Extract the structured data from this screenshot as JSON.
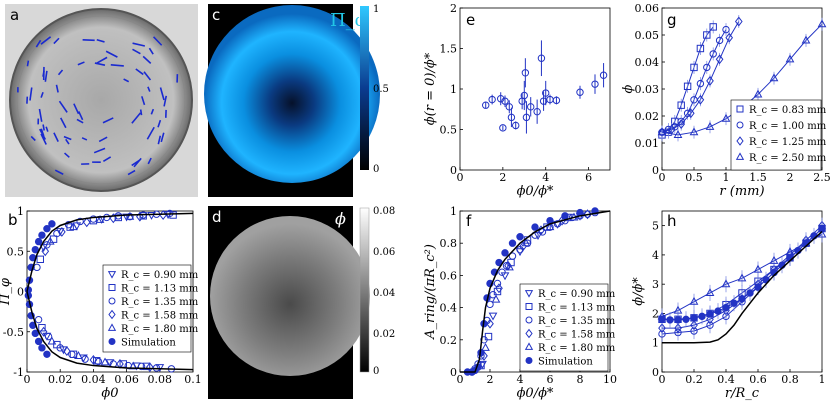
{
  "figure": {
    "panel_letters": [
      "a",
      "b",
      "c",
      "d",
      "e",
      "f",
      "g",
      "h"
    ],
    "colors": {
      "series": "#2233c4",
      "fit": "#000000",
      "colorbar_pi": "#00b4ff",
      "title_pi": "#22c7e6"
    }
  },
  "panel_c": {
    "title": "Π_φ",
    "colorbar": {
      "labels": [
        "1",
        "0.5",
        "0"
      ],
      "cmap": "black-blue-cyan"
    }
  },
  "panel_d": {
    "title": "ϕ",
    "colorbar": {
      "labels": [
        "0.08",
        "0.06",
        "0.04",
        "0.02",
        "0"
      ],
      "cmap": "black-gray-white"
    }
  },
  "chart_data": [
    {
      "id": "b",
      "type": "scatter",
      "xlabel": "ϕ0",
      "ylabel": "Π_φ",
      "xlim": [
        0,
        0.1
      ],
      "ylim": [
        -1,
        1
      ],
      "xticks": [
        "0",
        "0.02",
        "0.04",
        "0.06",
        "0.08",
        "0.1"
      ],
      "yticks": [
        "-1",
        "-0.5",
        "0",
        "0.5",
        "1"
      ],
      "legend": [
        "R_c = 0.90 mm",
        "R_c = 1.13 mm",
        "R_c = 1.35 mm",
        "R_c = 1.58 mm",
        "R_c = 1.80 mm",
        "Simulation"
      ],
      "legend_position": "right",
      "series": [
        {
          "name": "Rc=0.90mm",
          "marker": "triangle-down",
          "x": [
            0.01,
            0.02,
            0.03,
            0.045,
            0.06,
            0.075,
            0.085,
            0.012,
            0.022,
            0.034,
            0.05,
            0.066,
            0.08
          ],
          "y": [
            0.55,
            0.75,
            0.82,
            0.9,
            0.93,
            0.95,
            0.96,
            -0.55,
            -0.72,
            -0.82,
            -0.88,
            -0.92,
            -0.94
          ]
        },
        {
          "name": "Rc=1.13mm",
          "marker": "square",
          "x": [
            0.008,
            0.016,
            0.026,
            0.04,
            0.055,
            0.07,
            0.088,
            0.009,
            0.018,
            0.028,
            0.042,
            0.058,
            0.072
          ],
          "y": [
            0.4,
            0.65,
            0.8,
            0.88,
            0.92,
            0.94,
            0.95,
            -0.45,
            -0.66,
            -0.78,
            -0.86,
            -0.9,
            -0.93
          ]
        },
        {
          "name": "Rc=1.35mm",
          "marker": "circle",
          "x": [
            0.006,
            0.012,
            0.018,
            0.025,
            0.032,
            0.04,
            0.048,
            0.055,
            0.062,
            0.07,
            0.078,
            0.086,
            0.007,
            0.013,
            0.02,
            0.027,
            0.035,
            0.043,
            0.052,
            0.061,
            0.069,
            0.078,
            0.087
          ],
          "y": [
            0.3,
            0.58,
            0.72,
            0.83,
            0.87,
            0.9,
            0.92,
            0.94,
            0.93,
            0.95,
            0.96,
            0.97,
            -0.35,
            -0.56,
            -0.7,
            -0.78,
            -0.84,
            -0.87,
            -0.9,
            -0.92,
            -0.93,
            -0.95,
            -0.96
          ]
        },
        {
          "name": "Rc=1.58mm",
          "marker": "diamond",
          "x": [
            0.011,
            0.021,
            0.036,
            0.052,
            0.068,
            0.082,
            0.01,
            0.024,
            0.04,
            0.056,
            0.074
          ],
          "y": [
            0.5,
            0.74,
            0.86,
            0.91,
            0.93,
            0.95,
            -0.5,
            -0.74,
            -0.85,
            -0.9,
            -0.94
          ]
        },
        {
          "name": "Rc=1.80mm",
          "marker": "triangle-up",
          "x": [
            0.014,
            0.028,
            0.044,
            0.062,
            0.015,
            0.031,
            0.047,
            0.064
          ],
          "y": [
            0.62,
            0.8,
            0.89,
            0.93,
            -0.62,
            -0.8,
            -0.88,
            -0.93
          ]
        },
        {
          "name": "Simulation",
          "marker": "filled-circle",
          "x": [
            0.0008,
            0.0015,
            0.0025,
            0.0035,
            0.005,
            0.007,
            0.009,
            0.012,
            0.015,
            0.0008,
            0.0015,
            0.0025,
            0.0035,
            0.005,
            0.007,
            0.009,
            0.012
          ],
          "y": [
            0.02,
            0.14,
            0.3,
            0.42,
            0.52,
            0.62,
            0.7,
            0.78,
            0.84,
            -0.05,
            -0.16,
            -0.3,
            -0.42,
            -0.52,
            -0.62,
            -0.7,
            -0.78
          ]
        }
      ],
      "fit": {
        "name": "fit",
        "x": [
          0,
          0.003,
          0.006,
          0.01,
          0.015,
          0.02,
          0.03,
          0.04,
          0.06,
          0.08,
          0.1
        ],
        "y": [
          0.0,
          0.26,
          0.46,
          0.62,
          0.75,
          0.82,
          0.89,
          0.92,
          0.95,
          0.96,
          0.97
        ]
      }
    },
    {
      "id": "e",
      "type": "scatter",
      "xlabel": "ϕ0/ϕ*",
      "ylabel": "ϕ(r = 0)/ϕ*",
      "xlim": [
        0,
        7
      ],
      "ylim": [
        0,
        2
      ],
      "xticks": [
        "0",
        "2",
        "4",
        "6"
      ],
      "yticks": [
        "0",
        "0.5",
        "1",
        "1.5",
        "2"
      ],
      "series": [
        {
          "name": "data",
          "marker": "circle",
          "x": [
            1.2,
            1.5,
            1.9,
            2.0,
            2.1,
            2.3,
            2.4,
            2.6,
            2.9,
            3.0,
            3.05,
            3.1,
            3.3,
            3.6,
            3.8,
            3.9,
            4.0,
            4.2,
            4.5,
            5.6,
            6.3,
            6.7
          ],
          "y": [
            0.8,
            0.87,
            0.88,
            0.52,
            0.85,
            0.78,
            0.65,
            0.55,
            0.85,
            0.92,
            1.2,
            0.65,
            0.78,
            0.72,
            1.38,
            0.85,
            0.95,
            0.87,
            0.86,
            0.96,
            1.06,
            1.17
          ],
          "err": [
            0.04,
            0.06,
            0.08,
            0.03,
            0.07,
            0.08,
            0.12,
            0.05,
            0.1,
            0.18,
            0.18,
            0.2,
            0.12,
            0.15,
            0.22,
            0.12,
            0.15,
            0.06,
            0.05,
            0.08,
            0.12,
            0.15
          ]
        }
      ]
    },
    {
      "id": "f",
      "type": "scatter",
      "xlabel": "ϕ0/ϕ*",
      "ylabel": "A_ring/(πR_c²)",
      "xlim": [
        0,
        10
      ],
      "ylim": [
        0,
        1
      ],
      "xticks": [
        "0",
        "2",
        "4",
        "6",
        "8",
        "10"
      ],
      "yticks": [
        "0",
        "0.2",
        "0.4",
        "0.6",
        "0.8",
        "1"
      ],
      "legend": [
        "R_c = 0.90 mm",
        "R_c = 1.13 mm",
        "R_c = 1.35 mm",
        "R_c = 1.58 mm",
        "R_c = 1.80 mm",
        "Simulation"
      ],
      "legend_position": "bottom-right",
      "series": [
        {
          "name": "Rc=0.90mm",
          "marker": "triangle-down",
          "x": [
            1.5,
            2.2,
            3.0,
            4.0,
            5.2,
            6.5,
            8.0
          ],
          "y": [
            0.05,
            0.35,
            0.6,
            0.75,
            0.85,
            0.92,
            0.97
          ]
        },
        {
          "name": "Rc=1.13mm",
          "marker": "square",
          "x": [
            1.4,
            1.9,
            2.5,
            3.4,
            4.5,
            5.8,
            7.2
          ],
          "y": [
            0.04,
            0.22,
            0.5,
            0.68,
            0.82,
            0.9,
            0.96
          ]
        },
        {
          "name": "Rc=1.35mm",
          "marker": "circle",
          "x": [
            0.8,
            1.0,
            1.2,
            1.4,
            1.6,
            1.8,
            2.0,
            2.2,
            2.5,
            2.8,
            3.1,
            3.5,
            4.0,
            4.5,
            5.0,
            5.5,
            6.0,
            6.5,
            7.0,
            7.5,
            8.0,
            8.5,
            9.0
          ],
          "y": [
            0.0,
            0.02,
            0.05,
            0.1,
            0.2,
            0.32,
            0.42,
            0.48,
            0.55,
            0.62,
            0.66,
            0.72,
            0.76,
            0.8,
            0.85,
            0.87,
            0.9,
            0.92,
            0.94,
            0.96,
            0.97,
            0.98,
            0.99
          ]
        },
        {
          "name": "Rc=1.58mm",
          "marker": "diamond",
          "x": [
            1.6,
            2.0,
            2.6,
            3.2,
            4.2,
            5.4,
            6.8,
            8.5
          ],
          "y": [
            0.1,
            0.3,
            0.52,
            0.66,
            0.78,
            0.88,
            0.94,
            0.98
          ]
        },
        {
          "name": "Rc=1.80mm",
          "marker": "triangle-up",
          "x": [
            1.7,
            2.4,
            3.3,
            4.4,
            6.0,
            7.6
          ],
          "y": [
            0.15,
            0.45,
            0.65,
            0.8,
            0.9,
            0.96
          ]
        },
        {
          "name": "Simulation",
          "marker": "filled-circle",
          "x": [
            0.5,
            0.8,
            1.0,
            1.2,
            1.4,
            1.6,
            1.8,
            2.0,
            2.3,
            2.6,
            3.0,
            3.5,
            4.0,
            5.0,
            6.0,
            7.0,
            8.0,
            9.0
          ],
          "y": [
            0.0,
            0.0,
            0.01,
            0.03,
            0.12,
            0.3,
            0.46,
            0.55,
            0.62,
            0.68,
            0.74,
            0.8,
            0.84,
            0.9,
            0.94,
            0.97,
            0.99,
            1.0
          ]
        }
      ],
      "fit": {
        "name": "fit",
        "x": [
          0,
          1.0,
          1.3,
          1.5,
          1.7,
          2.0,
          2.5,
          3.0,
          4.0,
          5.0,
          6.0,
          8.0,
          10.0
        ],
        "y": [
          0,
          0,
          0.08,
          0.25,
          0.4,
          0.52,
          0.63,
          0.7,
          0.8,
          0.87,
          0.92,
          0.97,
          1.0
        ]
      }
    },
    {
      "id": "g",
      "type": "line",
      "xlabel": "r (mm)",
      "ylabel": "ϕ",
      "xlim": [
        0,
        2.5
      ],
      "ylim": [
        0,
        0.06
      ],
      "xticks": [
        "0",
        "0.5",
        "1",
        "1.5",
        "2",
        "2.5"
      ],
      "yticks": [
        "0",
        "0.01",
        "0.02",
        "0.03",
        "0.04",
        "0.05",
        "0.06"
      ],
      "legend": [
        "R_c = 0.83 mm",
        "R_c = 1.00 mm",
        "R_c = 1.25 mm",
        "R_c = 2.50 mm"
      ],
      "legend_position": "bottom-right",
      "series": [
        {
          "name": "Rc=0.83mm",
          "marker": "square",
          "x": [
            0,
            0.1,
            0.2,
            0.3,
            0.4,
            0.5,
            0.6,
            0.7,
            0.8
          ],
          "y": [
            0.013,
            0.014,
            0.018,
            0.024,
            0.031,
            0.038,
            0.045,
            0.05,
            0.053
          ]
        },
        {
          "name": "Rc=1.00mm",
          "marker": "circle",
          "x": [
            0,
            0.1,
            0.2,
            0.3,
            0.4,
            0.5,
            0.6,
            0.7,
            0.8,
            0.9,
            1.0
          ],
          "y": [
            0.014,
            0.015,
            0.016,
            0.018,
            0.021,
            0.026,
            0.032,
            0.038,
            0.043,
            0.048,
            0.052
          ]
        },
        {
          "name": "Rc=1.25mm",
          "marker": "diamond",
          "x": [
            0,
            0.15,
            0.3,
            0.45,
            0.6,
            0.75,
            0.9,
            1.05,
            1.2
          ],
          "y": [
            0.014,
            0.015,
            0.017,
            0.021,
            0.026,
            0.033,
            0.041,
            0.049,
            0.055
          ]
        },
        {
          "name": "Rc=2.50mm",
          "marker": "triangle-up",
          "x": [
            0,
            0.25,
            0.5,
            0.75,
            1.0,
            1.25,
            1.5,
            1.75,
            2.0,
            2.25,
            2.5
          ],
          "y": [
            0.014,
            0.013,
            0.014,
            0.016,
            0.019,
            0.023,
            0.028,
            0.034,
            0.041,
            0.048,
            0.054
          ]
        }
      ]
    },
    {
      "id": "h",
      "type": "line",
      "xlabel": "r/R_c",
      "ylabel": "ϕ/ϕ*",
      "xlim": [
        0,
        1
      ],
      "ylim": [
        0,
        5.5
      ],
      "xticks": [
        "0",
        "0.2",
        "0.4",
        "0.6",
        "0.8",
        "1"
      ],
      "yticks": [
        "0",
        "1",
        "2",
        "3",
        "4",
        "5"
      ],
      "series": [
        {
          "name": "Rc=0.83mm",
          "marker": "square",
          "x": [
            0,
            0.1,
            0.2,
            0.3,
            0.4,
            0.5,
            0.6,
            0.7,
            0.8,
            0.9,
            1.0
          ],
          "y": [
            1.8,
            1.8,
            1.85,
            2.0,
            2.3,
            2.7,
            3.1,
            3.5,
            3.9,
            4.4,
            4.9
          ]
        },
        {
          "name": "Rc=1.00mm",
          "marker": "circle",
          "x": [
            0,
            0.1,
            0.2,
            0.3,
            0.4,
            0.5,
            0.6,
            0.7,
            0.8,
            0.9,
            1.0
          ],
          "y": [
            1.3,
            1.35,
            1.4,
            1.6,
            1.9,
            2.4,
            2.9,
            3.4,
            3.9,
            4.4,
            4.9
          ]
        },
        {
          "name": "Rc=1.25mm",
          "marker": "diamond",
          "x": [
            0,
            0.1,
            0.2,
            0.3,
            0.4,
            0.5,
            0.6,
            0.7,
            0.8,
            0.9,
            1.0
          ],
          "y": [
            1.5,
            1.5,
            1.6,
            1.8,
            2.1,
            2.5,
            3.0,
            3.5,
            4.0,
            4.5,
            5.0
          ]
        },
        {
          "name": "Rc=2.50mm",
          "marker": "triangle-up",
          "x": [
            0,
            0.1,
            0.2,
            0.3,
            0.4,
            0.5,
            0.6,
            0.7,
            0.8,
            0.9,
            1.0
          ],
          "y": [
            1.9,
            2.1,
            2.4,
            2.7,
            3.0,
            3.2,
            3.5,
            3.8,
            4.1,
            4.4,
            4.7
          ]
        },
        {
          "name": "Simulation",
          "marker": "filled-circle",
          "x": [
            0,
            0.05,
            0.1,
            0.15,
            0.2,
            0.25,
            0.3,
            0.35,
            0.4,
            0.45,
            0.5,
            0.55,
            0.6,
            0.65,
            0.7,
            0.75,
            0.8,
            0.85,
            0.9,
            0.95,
            1.0
          ],
          "y": [
            1.8,
            1.78,
            1.78,
            1.8,
            1.85,
            1.9,
            1.98,
            2.08,
            2.2,
            2.35,
            2.5,
            2.7,
            2.9,
            3.15,
            3.4,
            3.65,
            3.9,
            4.15,
            4.4,
            4.65,
            4.9
          ]
        }
      ],
      "fit": {
        "name": "fit",
        "x": [
          0,
          0.2,
          0.3,
          0.35,
          0.4,
          0.45,
          0.5,
          0.6,
          0.7,
          0.8,
          0.9,
          1.0
        ],
        "y": [
          1.0,
          1.0,
          1.02,
          1.1,
          1.3,
          1.6,
          2.0,
          2.7,
          3.3,
          3.8,
          4.3,
          4.8
        ]
      }
    }
  ]
}
